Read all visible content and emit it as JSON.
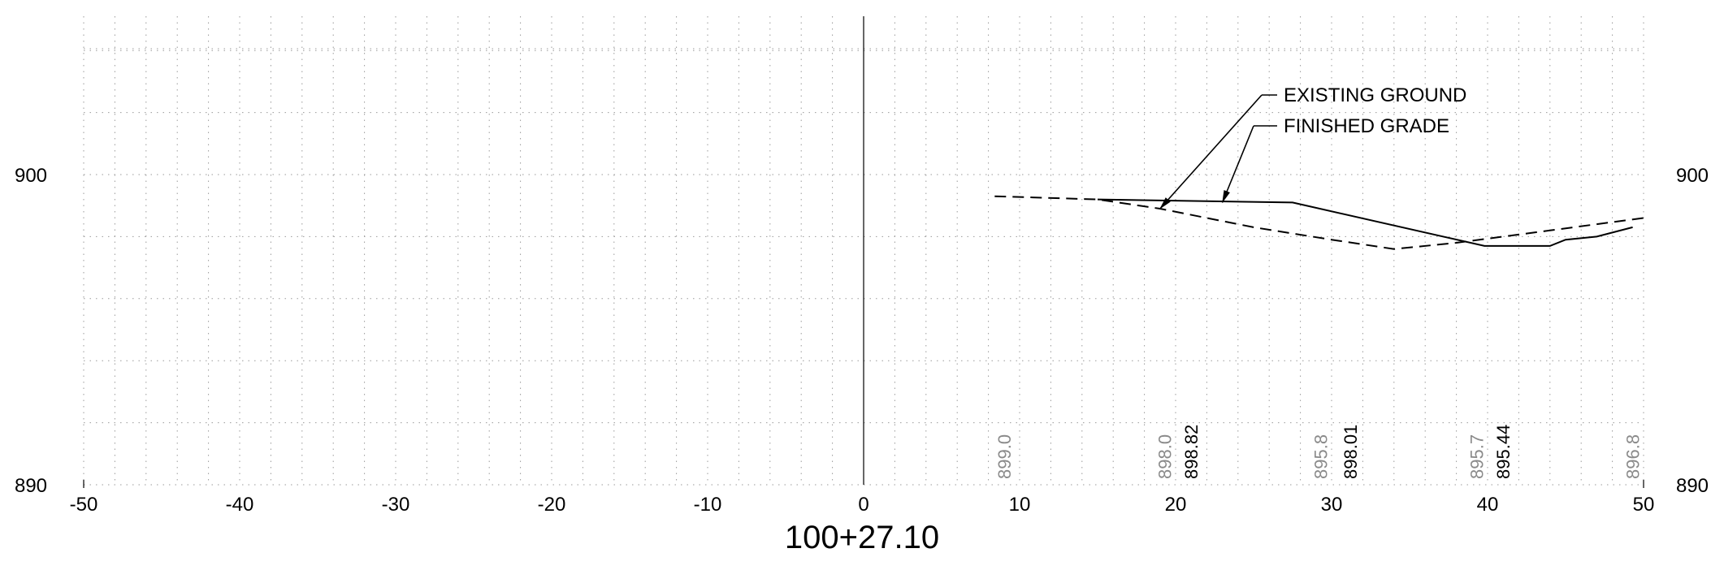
{
  "station_label": "100+27.10",
  "chart_data": {
    "type": "line",
    "title": "",
    "xlabel": "",
    "ylabel": "",
    "xlim": [
      -50,
      50
    ],
    "ylim": [
      890,
      900
    ],
    "x_ticks": [
      -50,
      -40,
      -30,
      -20,
      -10,
      0,
      10,
      20,
      30,
      40,
      50
    ],
    "y_tick_labels": [
      {
        "value": 890,
        "label": "890"
      },
      {
        "value": 900,
        "label": "900"
      }
    ],
    "grid": true,
    "series": [
      {
        "name": "EXISTING GROUND",
        "style": "dashed",
        "points": [
          [
            8.4,
            899.3
          ],
          [
            15,
            899.2
          ],
          [
            19,
            898.9
          ],
          [
            25,
            898.3
          ],
          [
            30,
            897.9
          ],
          [
            34,
            897.6
          ],
          [
            38,
            897.8
          ],
          [
            44,
            898.2
          ],
          [
            47,
            898.4
          ],
          [
            50,
            898.6
          ]
        ]
      },
      {
        "name": "FINISHED GRADE",
        "style": "solid",
        "points": [
          [
            15,
            899.2
          ],
          [
            27.5,
            899.1
          ],
          [
            39.8,
            897.7
          ],
          [
            44,
            897.7
          ],
          [
            45,
            897.9
          ],
          [
            47,
            898.0
          ],
          [
            49.3,
            898.3
          ]
        ]
      }
    ],
    "legend": [
      {
        "label": "EXISTING GROUND",
        "arrow_to": [
          19,
          898.9
        ]
      },
      {
        "label": "FINISHED GRADE",
        "arrow_to": [
          23,
          899.1
        ]
      }
    ],
    "elevation_labels": [
      {
        "x": 9,
        "text": "899.0",
        "color": "#8a8a8a"
      },
      {
        "x": 19.3,
        "text": "898.0",
        "color": "#8a8a8a"
      },
      {
        "x": 21,
        "text": "898.82",
        "color": "#000000"
      },
      {
        "x": 29.3,
        "text": "895.8",
        "color": "#8a8a8a"
      },
      {
        "x": 31.2,
        "text": "898.01",
        "color": "#000000"
      },
      {
        "x": 39.3,
        "text": "895.7",
        "color": "#8a8a8a"
      },
      {
        "x": 41,
        "text": "895.44",
        "color": "#000000"
      },
      {
        "x": 49.3,
        "text": "896.8",
        "color": "#8a8a8a"
      }
    ]
  }
}
